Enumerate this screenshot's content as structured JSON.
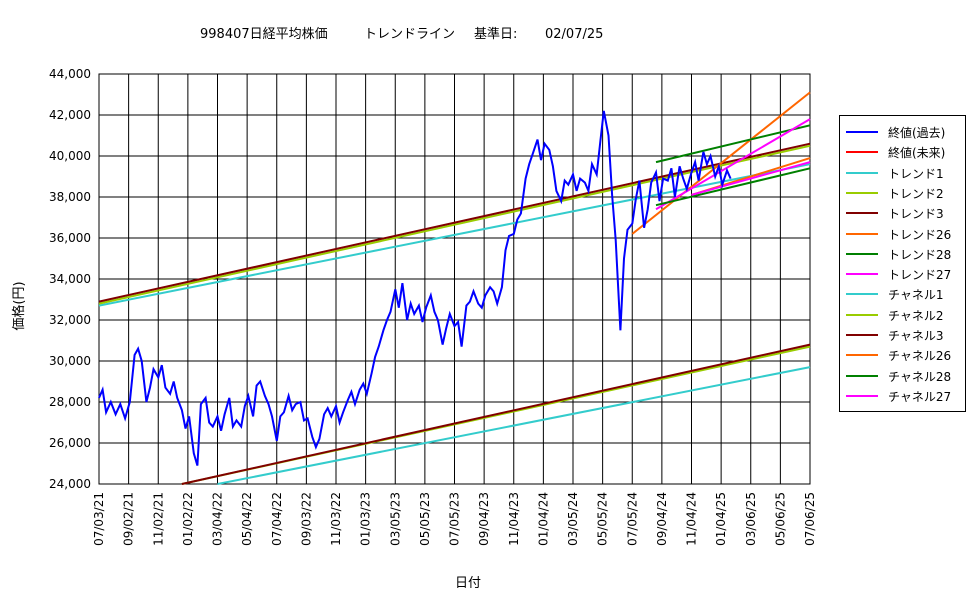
{
  "chart_data": {
    "type": "line",
    "title": "998407日経平均株価",
    "subtitle": "トレンドライン",
    "basis_label": "基準日:",
    "basis_date": "02/07/25",
    "xlabel": "日付",
    "ylabel": "価格(円)",
    "ylim": [
      24000,
      44000
    ],
    "y_ticks": [
      "24,000",
      "26,000",
      "28,000",
      "30,000",
      "32,000",
      "34,000",
      "36,000",
      "38,000",
      "40,000",
      "42,000",
      "44,000"
    ],
    "x_ticks": [
      "07/03/21",
      "09/02/21",
      "11/02/21",
      "01/02/22",
      "03/04/22",
      "05/04/22",
      "07/04/22",
      "09/03/22",
      "11/03/22",
      "01/03/23",
      "03/05/23",
      "05/05/23",
      "07/05/23",
      "09/04/23",
      "11/04/23",
      "01/04/24",
      "03/05/24",
      "05/05/24",
      "07/05/24",
      "09/04/24",
      "11/04/24",
      "01/04/25",
      "03/06/25",
      "05/06/25",
      "07/06/25"
    ],
    "grid": true,
    "legend_position": "right",
    "price_series": {
      "name": "終値(過去)",
      "color": "#0000ff",
      "values": [
        [
          0,
          28200
        ],
        [
          0.3,
          28600
        ],
        [
          0.6,
          27500
        ],
        [
          1,
          28000
        ],
        [
          1.4,
          27400
        ],
        [
          1.8,
          27900
        ],
        [
          2.2,
          27200
        ],
        [
          2.6,
          28000
        ],
        [
          3,
          30300
        ],
        [
          3.3,
          30600
        ],
        [
          3.6,
          30000
        ],
        [
          4,
          28000
        ],
        [
          4.3,
          28700
        ],
        [
          4.6,
          29600
        ],
        [
          5,
          29200
        ],
        [
          5.3,
          29800
        ],
        [
          5.6,
          28700
        ],
        [
          6,
          28400
        ],
        [
          6.3,
          29000
        ],
        [
          6.6,
          28200
        ],
        [
          7,
          27600
        ],
        [
          7.3,
          26700
        ],
        [
          7.6,
          27300
        ],
        [
          8,
          25500
        ],
        [
          8.3,
          24900
        ],
        [
          8.6,
          27900
        ],
        [
          9,
          28200
        ],
        [
          9.3,
          27000
        ],
        [
          9.6,
          26800
        ],
        [
          10,
          27300
        ],
        [
          10.3,
          26600
        ],
        [
          10.6,
          27400
        ],
        [
          11,
          28200
        ],
        [
          11.3,
          26800
        ],
        [
          11.6,
          27100
        ],
        [
          12,
          26800
        ],
        [
          12.3,
          27800
        ],
        [
          12.6,
          28300
        ],
        [
          13,
          27300
        ],
        [
          13.3,
          28800
        ],
        [
          13.6,
          29000
        ],
        [
          14,
          28300
        ],
        [
          14.3,
          27900
        ],
        [
          14.6,
          27300
        ],
        [
          15,
          26100
        ],
        [
          15.3,
          27300
        ],
        [
          15.6,
          27500
        ],
        [
          16,
          28300
        ],
        [
          16.3,
          27600
        ],
        [
          16.6,
          27900
        ],
        [
          17,
          28000
        ],
        [
          17.3,
          27100
        ],
        [
          17.6,
          27200
        ],
        [
          18,
          26300
        ],
        [
          18.3,
          25800
        ],
        [
          18.6,
          26200
        ],
        [
          19,
          27400
        ],
        [
          19.3,
          27700
        ],
        [
          19.6,
          27300
        ],
        [
          20,
          27800
        ],
        [
          20.3,
          27000
        ],
        [
          20.6,
          27500
        ],
        [
          21,
          28100
        ],
        [
          21.3,
          28500
        ],
        [
          21.6,
          27900
        ],
        [
          22,
          28600
        ],
        [
          22.3,
          28900
        ],
        [
          22.6,
          28400
        ],
        [
          23,
          29400
        ],
        [
          23.3,
          30200
        ],
        [
          23.6,
          30700
        ],
        [
          24,
          31500
        ],
        [
          24.3,
          32000
        ],
        [
          24.6,
          32400
        ],
        [
          25,
          33500
        ],
        [
          25.3,
          32600
        ],
        [
          25.6,
          33800
        ],
        [
          26,
          32000
        ],
        [
          26.3,
          32800
        ],
        [
          26.6,
          32300
        ],
        [
          27,
          32700
        ],
        [
          27.3,
          31900
        ],
        [
          27.6,
          32600
        ],
        [
          28,
          33200
        ],
        [
          28.3,
          32400
        ],
        [
          28.6,
          32000
        ],
        [
          29,
          30800
        ],
        [
          29.3,
          31600
        ],
        [
          29.6,
          32300
        ],
        [
          30,
          31700
        ],
        [
          30.3,
          31900
        ],
        [
          30.6,
          30700
        ],
        [
          31,
          32700
        ],
        [
          31.3,
          32900
        ],
        [
          31.6,
          33400
        ],
        [
          32,
          32800
        ],
        [
          32.3,
          32600
        ],
        [
          32.6,
          33200
        ],
        [
          33,
          33600
        ],
        [
          33.3,
          33400
        ],
        [
          33.6,
          32800
        ],
        [
          34,
          33600
        ],
        [
          34.3,
          35400
        ],
        [
          34.6,
          36100
        ],
        [
          35,
          36200
        ],
        [
          35.3,
          36900
        ],
        [
          35.6,
          37200
        ],
        [
          36,
          38900
        ],
        [
          36.3,
          39600
        ],
        [
          36.6,
          40100
        ],
        [
          37,
          40800
        ],
        [
          37.3,
          39800
        ],
        [
          37.6,
          40600
        ],
        [
          38,
          40300
        ],
        [
          38.3,
          39500
        ],
        [
          38.6,
          38300
        ],
        [
          39,
          37800
        ],
        [
          39.3,
          38800
        ],
        [
          39.6,
          38600
        ],
        [
          40,
          39100
        ],
        [
          40.3,
          38300
        ],
        [
          40.6,
          38900
        ],
        [
          41,
          38700
        ],
        [
          41.3,
          38300
        ],
        [
          41.6,
          39600
        ],
        [
          42,
          39100
        ],
        [
          42.3,
          40700
        ],
        [
          42.6,
          42200
        ],
        [
          43,
          41000
        ],
        [
          43.3,
          38100
        ],
        [
          43.6,
          35900
        ],
        [
          44,
          31500
        ],
        [
          44.3,
          35000
        ],
        [
          44.6,
          36400
        ],
        [
          45,
          36700
        ],
        [
          45.3,
          37900
        ],
        [
          45.6,
          38800
        ],
        [
          46,
          36500
        ],
        [
          46.3,
          37400
        ],
        [
          46.6,
          38700
        ],
        [
          47,
          39200
        ],
        [
          47.3,
          37800
        ],
        [
          47.6,
          38900
        ],
        [
          48,
          38800
        ],
        [
          48.3,
          39400
        ],
        [
          48.6,
          38000
        ],
        [
          49,
          39500
        ],
        [
          49.3,
          38900
        ],
        [
          49.6,
          38400
        ],
        [
          50,
          39200
        ],
        [
          50.3,
          39700
        ],
        [
          50.6,
          38800
        ],
        [
          51,
          40200
        ],
        [
          51.3,
          39600
        ],
        [
          51.6,
          40000
        ],
        [
          52,
          39000
        ],
        [
          52.3,
          39500
        ],
        [
          52.6,
          38600
        ],
        [
          53,
          39300
        ],
        [
          53.3,
          38900
        ]
      ]
    },
    "series": [
      {
        "name": "終値(未来)",
        "color": "#ff0000",
        "values": []
      },
      {
        "name": "トレンド1",
        "color": "#33cccc",
        "values": [
          [
            0,
            32700
          ],
          [
            60,
            39600
          ]
        ]
      },
      {
        "name": "トレンド2",
        "color": "#99cc00",
        "values": [
          [
            0,
            32800
          ],
          [
            60,
            40500
          ]
        ]
      },
      {
        "name": "トレンド3",
        "color": "#800000",
        "values": [
          [
            0,
            32900
          ],
          [
            60,
            40600
          ]
        ]
      },
      {
        "name": "トレンド26",
        "color": "#ff6600",
        "values": [
          [
            45,
            36200
          ],
          [
            60,
            43100
          ]
        ]
      },
      {
        "name": "トレンド28",
        "color": "#008000",
        "values": [
          [
            47,
            39700
          ],
          [
            60,
            41500
          ]
        ]
      },
      {
        "name": "トレンド27",
        "color": "#ff00ff",
        "values": [
          [
            47,
            37400
          ],
          [
            60,
            41800
          ]
        ]
      },
      {
        "name": "チャネル1",
        "color": "#33cccc",
        "values": [
          [
            10,
            24000
          ],
          [
            60,
            29700
          ]
        ]
      },
      {
        "name": "チャネル2",
        "color": "#99cc00",
        "values": [
          [
            7,
            24000
          ],
          [
            60,
            30700
          ]
        ]
      },
      {
        "name": "チャネル3",
        "color": "#800000",
        "values": [
          [
            7,
            24000
          ],
          [
            60,
            30800
          ]
        ]
      },
      {
        "name": "チャネル26",
        "color": "#ff6600",
        "values": [
          [
            50,
            38100
          ],
          [
            60,
            39900
          ]
        ]
      },
      {
        "name": "チャネル28",
        "color": "#008000",
        "values": [
          [
            47,
            37600
          ],
          [
            60,
            39400
          ]
        ]
      },
      {
        "name": "チャネル27",
        "color": "#ff00ff",
        "values": [
          [
            50,
            38100
          ],
          [
            60,
            39700
          ]
        ]
      }
    ],
    "legend": [
      "終値(過去)",
      "終値(未来)",
      "トレンド1",
      "トレンド2",
      "トレンド3",
      "トレンド26",
      "トレンド28",
      "トレンド27",
      "チャネル1",
      "チャネル2",
      "チャネル3",
      "チャネル26",
      "チャネル28",
      "チャネル27"
    ]
  }
}
